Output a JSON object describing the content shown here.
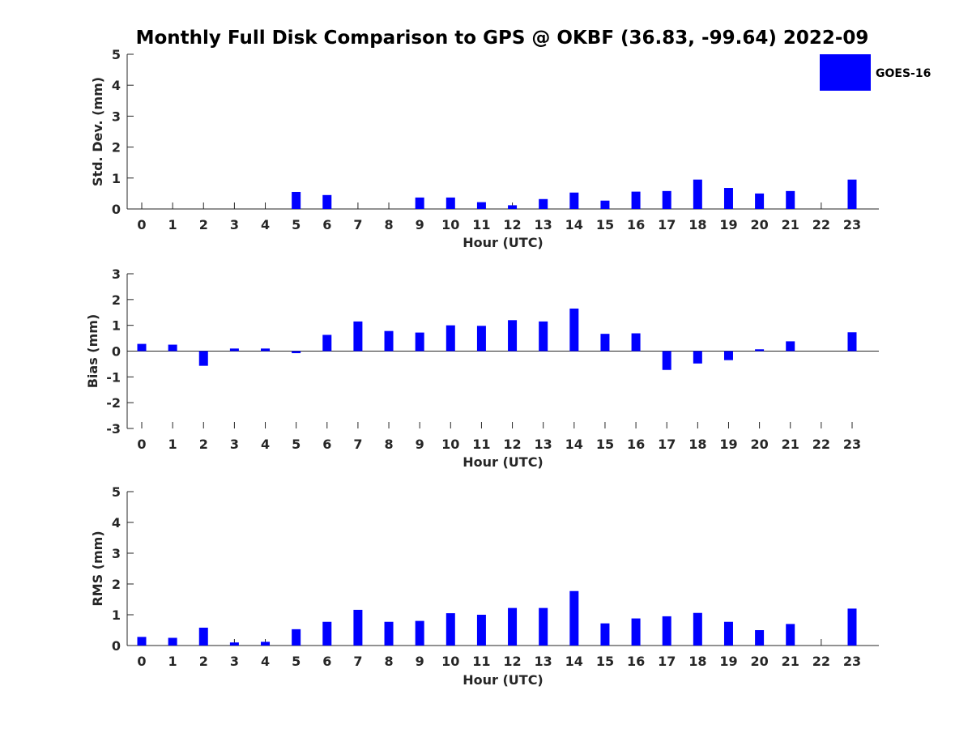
{
  "title": "Monthly Full Disk Comparison to GPS @ OKBF (36.83, -99.64) 2022-09",
  "legend": {
    "label": "GOES-16",
    "color": "#0000ff"
  },
  "colors": {
    "bar": "#0000ff",
    "axis": "#262626"
  },
  "chart_data": [
    {
      "type": "bar",
      "name": "std-dev",
      "series_name": "GOES-16",
      "xlabel": "Hour (UTC)",
      "ylabel": "Std. Dev. (mm)",
      "ylim": [
        0,
        5
      ],
      "yticks": [
        0,
        1,
        2,
        3,
        4,
        5
      ],
      "categories": [
        "0",
        "1",
        "2",
        "3",
        "4",
        "5",
        "6",
        "7",
        "8",
        "9",
        "10",
        "11",
        "12",
        "13",
        "14",
        "15",
        "16",
        "17",
        "18",
        "19",
        "20",
        "21",
        "22",
        "23"
      ],
      "values": [
        null,
        null,
        null,
        null,
        null,
        0.55,
        0.45,
        null,
        null,
        0.37,
        0.37,
        0.22,
        0.12,
        0.32,
        0.53,
        0.27,
        0.56,
        0.58,
        0.95,
        0.68,
        0.5,
        0.58,
        null,
        0.95
      ]
    },
    {
      "type": "bar",
      "name": "bias",
      "series_name": "GOES-16",
      "xlabel": "Hour (UTC)",
      "ylabel": "Bias (mm)",
      "ylim": [
        -3,
        3
      ],
      "yticks": [
        -3,
        -2,
        -1,
        0,
        1,
        2,
        3
      ],
      "categories": [
        "0",
        "1",
        "2",
        "3",
        "4",
        "5",
        "6",
        "7",
        "8",
        "9",
        "10",
        "11",
        "12",
        "13",
        "14",
        "15",
        "16",
        "17",
        "18",
        "19",
        "20",
        "21",
        "22",
        "23"
      ],
      "values": [
        0.28,
        0.25,
        -0.57,
        0.1,
        0.1,
        -0.08,
        0.63,
        1.15,
        0.78,
        0.72,
        1.0,
        0.98,
        1.2,
        1.15,
        1.65,
        0.67,
        0.69,
        -0.73,
        -0.48,
        -0.35,
        0.07,
        0.38,
        null,
        0.73
      ]
    },
    {
      "type": "bar",
      "name": "rms",
      "series_name": "GOES-16",
      "xlabel": "Hour (UTC)",
      "ylabel": "RMS (mm)",
      "ylim": [
        0,
        5
      ],
      "yticks": [
        0,
        1,
        2,
        3,
        4,
        5
      ],
      "categories": [
        "0",
        "1",
        "2",
        "3",
        "4",
        "5",
        "6",
        "7",
        "8",
        "9",
        "10",
        "11",
        "12",
        "13",
        "14",
        "15",
        "16",
        "17",
        "18",
        "19",
        "20",
        "21",
        "22",
        "23"
      ],
      "values": [
        0.28,
        0.25,
        0.58,
        0.1,
        0.12,
        0.53,
        0.77,
        1.16,
        0.77,
        0.8,
        1.05,
        1.0,
        1.22,
        1.22,
        1.77,
        0.72,
        0.88,
        0.95,
        1.06,
        0.77,
        0.5,
        0.7,
        null,
        1.2
      ]
    }
  ]
}
